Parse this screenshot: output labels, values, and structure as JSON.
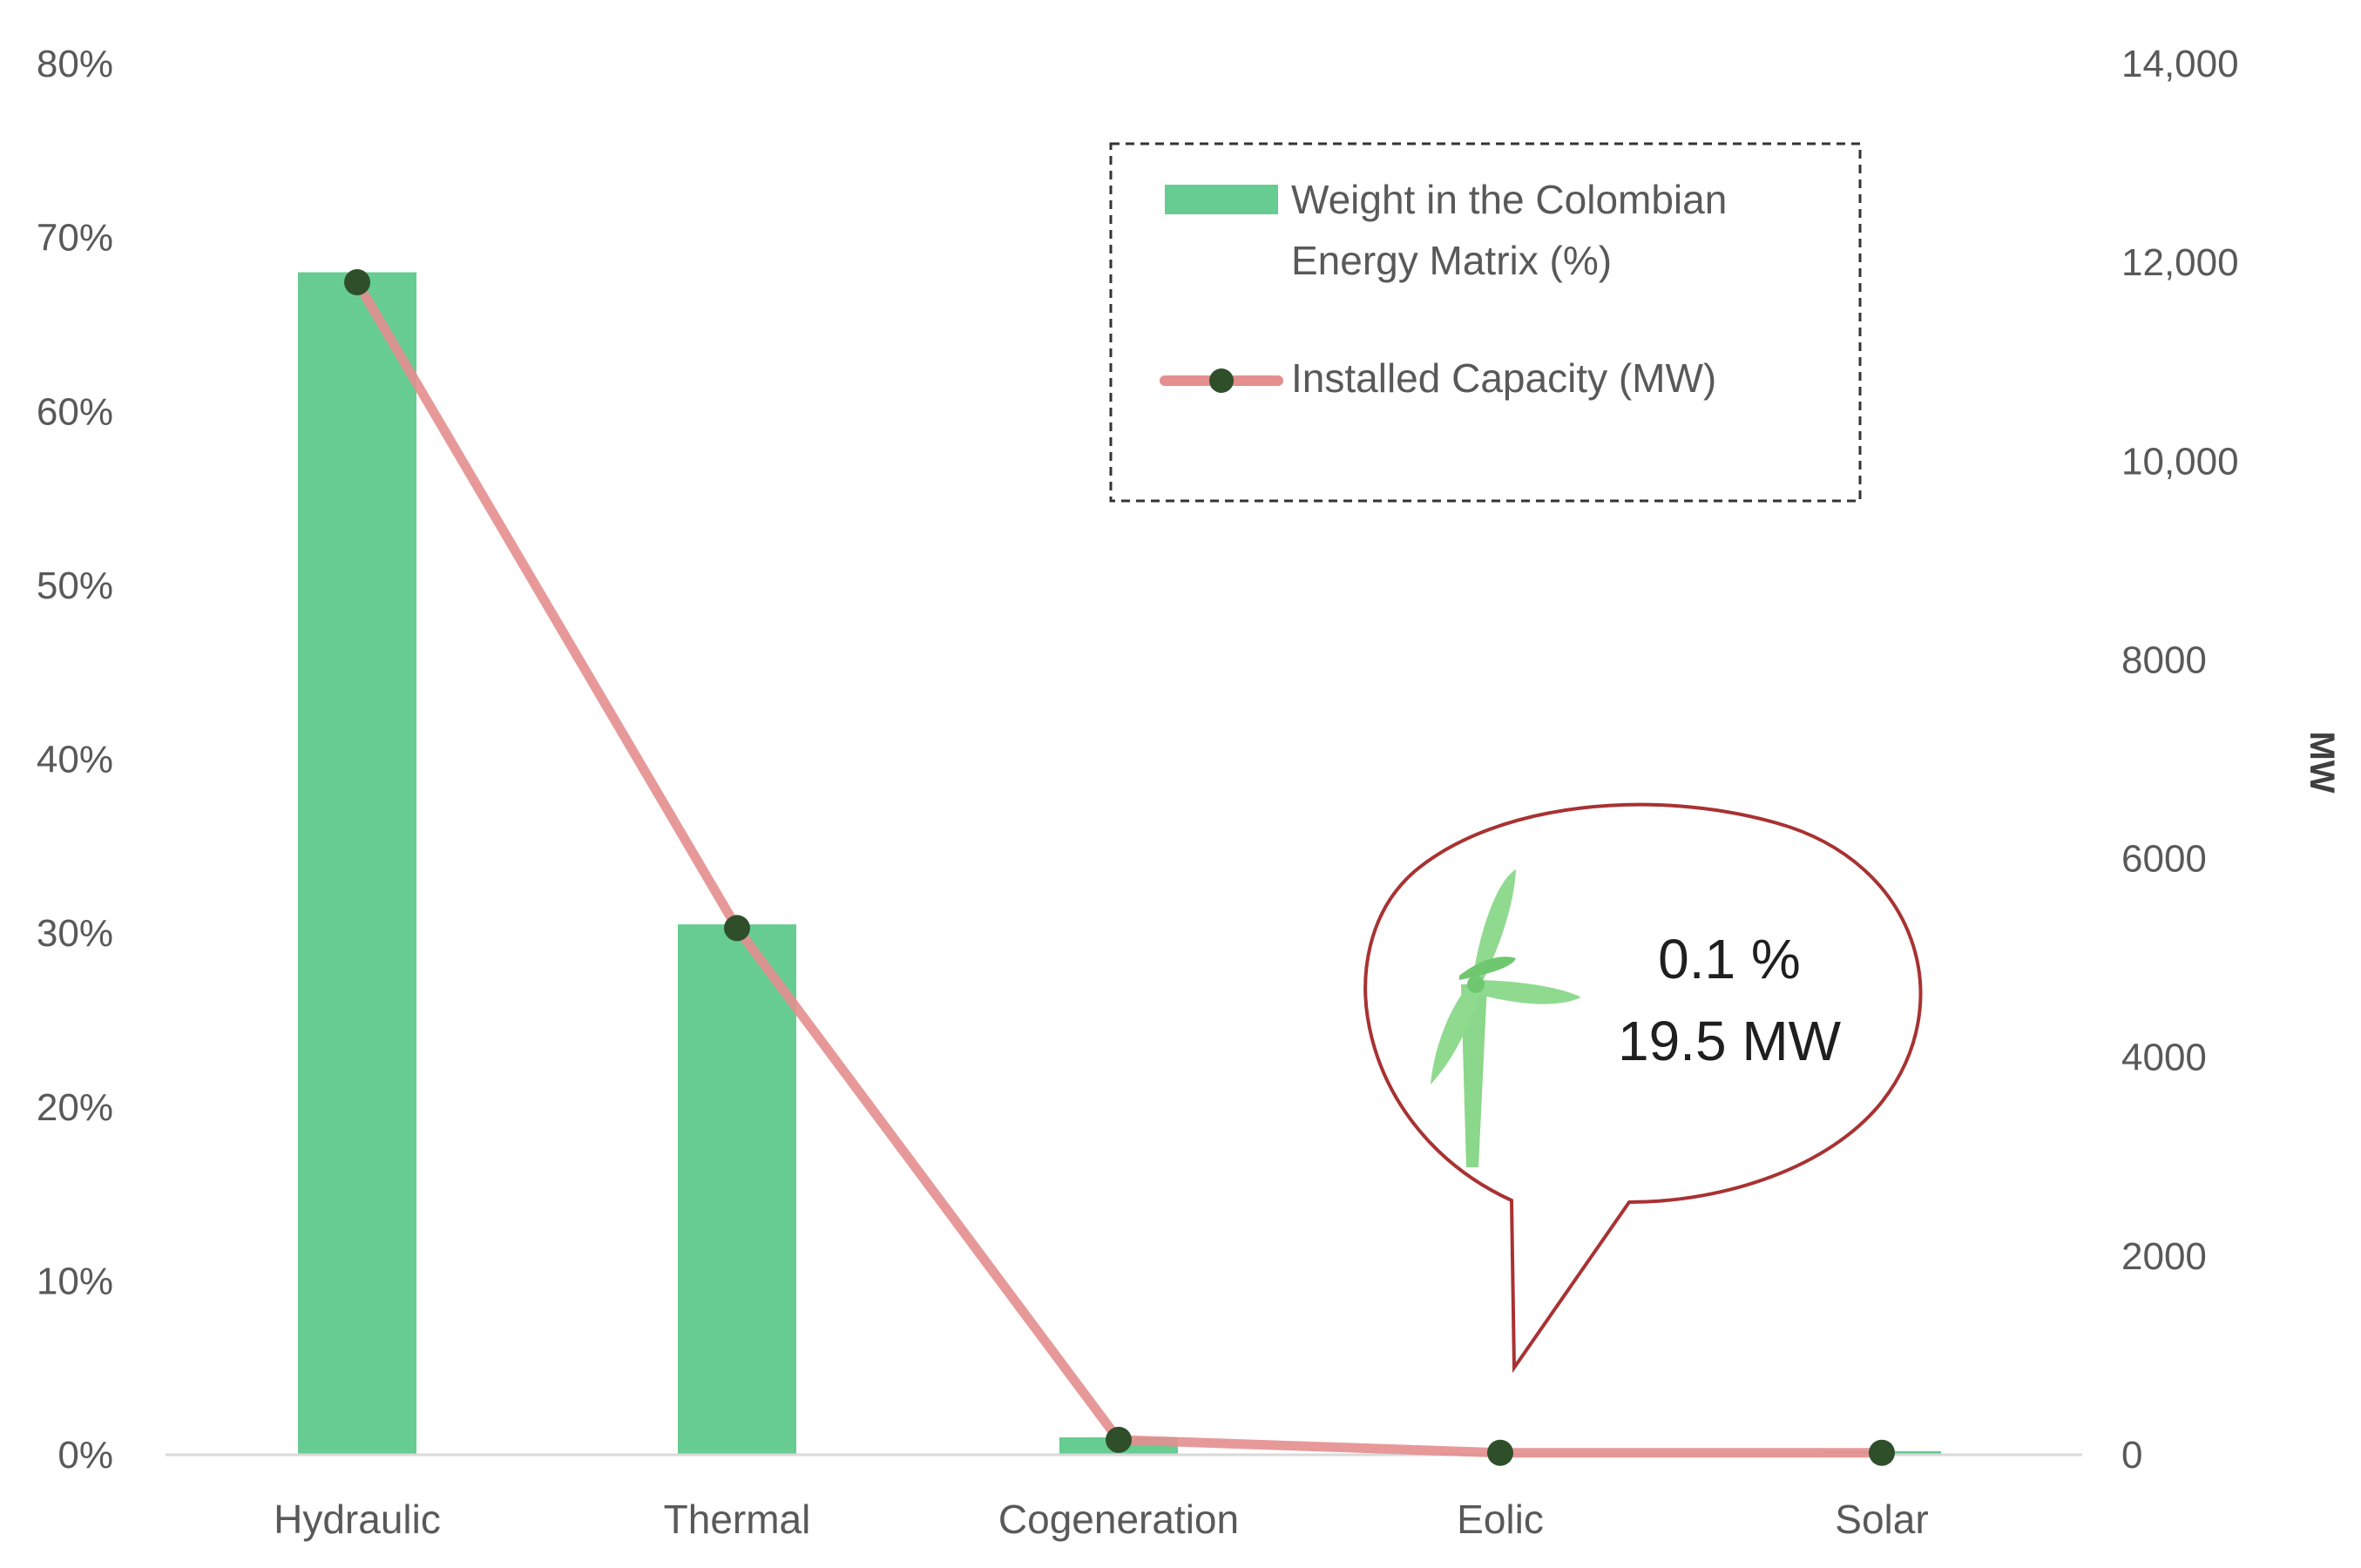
{
  "colors": {
    "bar": "#66cc92",
    "line": "#e48e8e",
    "marker": "#2f4f2a",
    "callout_border": "#a83232",
    "legend_border": "#333333",
    "turbine": "#7ed37e",
    "axis": "#d9d9d9"
  },
  "legend": {
    "bar_label_line1": "Weight in the Colombian",
    "bar_label_line2": "Energy Matrix (%)",
    "line_label": "Installed Capacity (MW)"
  },
  "callout": {
    "icon": "wind-turbine-icon",
    "line1": "0.1 %",
    "line2": "19.5 MW"
  },
  "chart_data": {
    "type": "bar",
    "categories": [
      "Hydraulic",
      "Thermal",
      "Cogeneration",
      "Eolic",
      "Solar"
    ],
    "series": [
      {
        "name": "Weight in the Colombian Energy Matrix (%)",
        "type": "bar",
        "axis": "left",
        "values": [
          68.0,
          30.5,
          1.0,
          0.1,
          0.2
        ]
      },
      {
        "name": "Installed Capacity (MW)",
        "type": "line",
        "axis": "right",
        "values": [
          11800,
          5300,
          150,
          19.5,
          20
        ]
      }
    ],
    "y_left": {
      "min": 0,
      "max": 80,
      "ticks": [
        0,
        10,
        20,
        30,
        40,
        50,
        60,
        70,
        80
      ],
      "tick_labels": [
        "0%",
        "10%",
        "20%",
        "30%",
        "40%",
        "50%",
        "60%",
        "70%",
        "80%"
      ]
    },
    "y_right": {
      "min": 0,
      "max": 14000,
      "ticks": [
        0,
        2000,
        4000,
        6000,
        8000,
        10000,
        12000,
        14000
      ],
      "tick_labels": [
        "0",
        "2000",
        "4000",
        "6000",
        "8000",
        "10,000",
        "12,000",
        "14,000"
      ],
      "label": "MW"
    },
    "grid": false,
    "legend_position": "top-right"
  }
}
